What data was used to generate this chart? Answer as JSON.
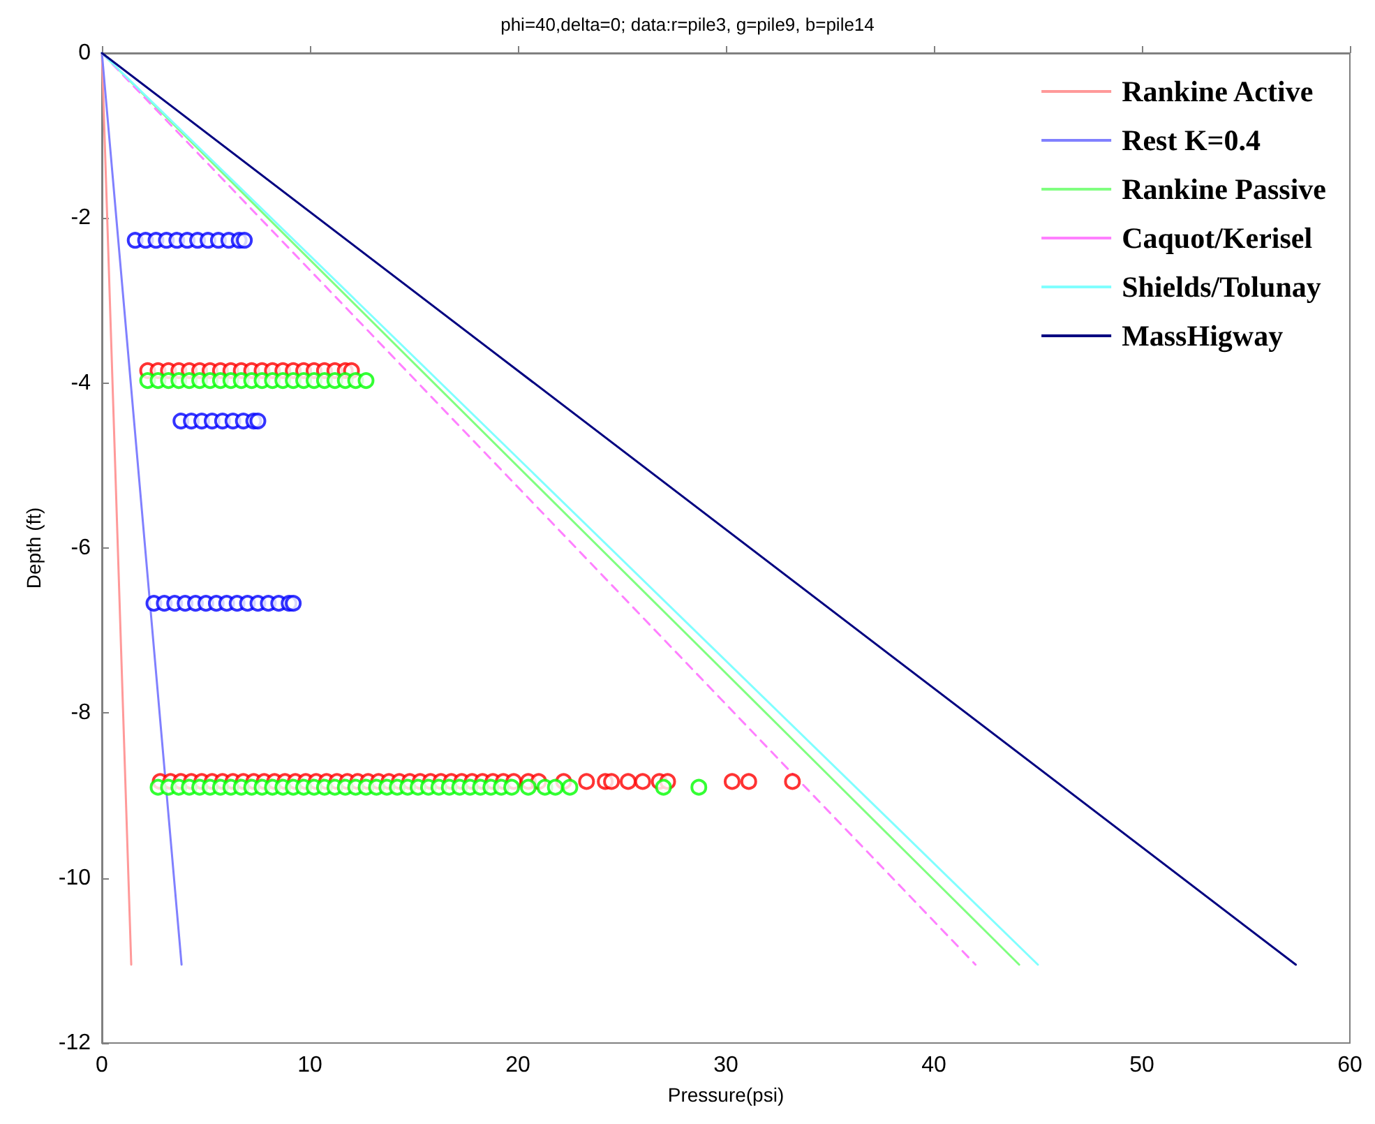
{
  "chart_data": {
    "type": "line",
    "title": "phi=40,delta=0; data:r=pile3, g=pile9, b=pile14",
    "xlabel": "Pressure(psi)",
    "ylabel": "Depth (ft)",
    "xlim": [
      0,
      60
    ],
    "xticks": [
      0,
      10,
      20,
      30,
      40,
      50,
      60
    ],
    "ylim": [
      -12,
      0
    ],
    "yticks": [
      -12,
      -10,
      -8,
      -6,
      -4,
      -2,
      0
    ],
    "grid": false,
    "legend": "top right",
    "marker": "none",
    "series": [
      {
        "name": "Rankine Active",
        "color": "#ff9999",
        "line_style": "solid",
        "x": [
          0,
          1.41
        ],
        "values": [
          0,
          -11.05
        ]
      },
      {
        "name": "Rest K=0.4",
        "color": "#8080ff",
        "line_style": "solid",
        "x": [
          0,
          3.83
        ],
        "values": [
          0,
          -11.05
        ]
      },
      {
        "name": "Rankine Passive",
        "color": "#80ff80",
        "line_style": "solid",
        "x": [
          0,
          44.1
        ],
        "values": [
          0,
          -11.05
        ]
      },
      {
        "name": "Caquot/Kerisel",
        "color": "#ff80ff",
        "line_style": "dashed",
        "x": [
          0,
          42.0
        ],
        "values": [
          0,
          -11.05
        ]
      },
      {
        "name": "Shields/Tolunay",
        "color": "#80ffff",
        "line_style": "solid",
        "x": [
          0,
          45.0
        ],
        "values": [
          0,
          -11.05
        ]
      },
      {
        "name": "MassHigway",
        "color": "#000080",
        "line_style": "solid",
        "x": [
          0,
          57.4
        ],
        "values": [
          0,
          -11.05
        ]
      },
      {
        "color": "#ff0000",
        "type": "scatter",
        "marker": "circle",
        "x": [
          2.2,
          2.7,
          3.2,
          3.7,
          4.2,
          4.7,
          5.2,
          5.7,
          6.2,
          6.7,
          7.2,
          7.7,
          8.2,
          8.7,
          9.2,
          9.7,
          10.2,
          10.7,
          11.2,
          11.7,
          12.0,
          2.8,
          3.3,
          3.8,
          4.3,
          4.8,
          5.3,
          5.8,
          6.3,
          6.8,
          7.3,
          7.8,
          8.3,
          8.8,
          9.3,
          9.8,
          10.3,
          10.8,
          11.3,
          11.8,
          12.3,
          12.8,
          13.3,
          13.8,
          14.3,
          14.8,
          15.3,
          15.8,
          16.3,
          16.8,
          17.3,
          17.8,
          18.3,
          18.8,
          19.3,
          19.8,
          20.5,
          21.0,
          22.2,
          23.3,
          24.2,
          24.5,
          25.3,
          26.0,
          26.8,
          27.2,
          30.3,
          31.1,
          33.2
        ],
        "values": [
          -3.85,
          -3.85,
          -3.85,
          -3.85,
          -3.85,
          -3.85,
          -3.85,
          -3.85,
          -3.85,
          -3.85,
          -3.85,
          -3.85,
          -3.85,
          -3.85,
          -3.85,
          -3.85,
          -3.85,
          -3.85,
          -3.85,
          -3.85,
          -3.85,
          -8.83,
          -8.83,
          -8.83,
          -8.83,
          -8.83,
          -8.83,
          -8.83,
          -8.83,
          -8.83,
          -8.83,
          -8.83,
          -8.83,
          -8.83,
          -8.83,
          -8.83,
          -8.83,
          -8.83,
          -8.83,
          -8.83,
          -8.83,
          -8.83,
          -8.83,
          -8.83,
          -8.83,
          -8.83,
          -8.83,
          -8.83,
          -8.83,
          -8.83,
          -8.83,
          -8.83,
          -8.83,
          -8.83,
          -8.83,
          -8.83,
          -8.83,
          -8.83,
          -8.83,
          -8.83,
          -8.83,
          -8.83,
          -8.83,
          -8.83,
          -8.83,
          -8.83,
          -8.83,
          -8.83,
          -8.83
        ]
      },
      {
        "color": "#00ff00",
        "type": "scatter",
        "marker": "circle",
        "x": [
          2.2,
          2.7,
          3.2,
          3.7,
          4.2,
          4.7,
          5.2,
          5.7,
          6.2,
          6.7,
          7.2,
          7.7,
          8.2,
          8.7,
          9.2,
          9.7,
          10.2,
          10.7,
          11.2,
          11.7,
          12.2,
          12.7,
          2.7,
          3.2,
          3.7,
          4.2,
          4.7,
          5.2,
          5.7,
          6.2,
          6.7,
          7.2,
          7.7,
          8.2,
          8.7,
          9.2,
          9.7,
          10.2,
          10.7,
          11.2,
          11.7,
          12.2,
          12.7,
          13.2,
          13.7,
          14.2,
          14.7,
          15.2,
          15.7,
          16.2,
          16.7,
          17.2,
          17.7,
          18.2,
          18.7,
          19.2,
          19.7,
          20.5,
          21.3,
          21.8,
          22.5,
          27.0,
          28.7
        ],
        "values": [
          -3.97,
          -3.97,
          -3.97,
          -3.97,
          -3.97,
          -3.97,
          -3.97,
          -3.97,
          -3.97,
          -3.97,
          -3.97,
          -3.97,
          -3.97,
          -3.97,
          -3.97,
          -3.97,
          -3.97,
          -3.97,
          -3.97,
          -3.97,
          -3.97,
          -3.97,
          -8.9,
          -8.9,
          -8.9,
          -8.9,
          -8.9,
          -8.9,
          -8.9,
          -8.9,
          -8.9,
          -8.9,
          -8.9,
          -8.9,
          -8.9,
          -8.9,
          -8.9,
          -8.9,
          -8.9,
          -8.9,
          -8.9,
          -8.9,
          -8.9,
          -8.9,
          -8.9,
          -8.9,
          -8.9,
          -8.9,
          -8.9,
          -8.9,
          -8.9,
          -8.9,
          -8.9,
          -8.9,
          -8.9,
          -8.9,
          -8.9,
          -8.9,
          -8.9,
          -8.9,
          -8.9,
          -8.9,
          -8.9
        ]
      },
      {
        "color": "#0000ff",
        "type": "scatter",
        "marker": "circle",
        "x": [
          1.6,
          2.1,
          2.6,
          3.1,
          3.6,
          4.1,
          4.6,
          5.1,
          5.6,
          6.1,
          6.6,
          6.85,
          3.8,
          4.3,
          4.8,
          5.3,
          5.8,
          6.3,
          6.8,
          7.3,
          7.5,
          2.5,
          3.0,
          3.5,
          4.0,
          4.5,
          5.0,
          5.5,
          6.0,
          6.5,
          7.0,
          7.5,
          8.0,
          8.5,
          9.0,
          9.2
        ],
        "values": [
          -2.27,
          -2.27,
          -2.27,
          -2.27,
          -2.27,
          -2.27,
          -2.27,
          -2.27,
          -2.27,
          -2.27,
          -2.27,
          -2.27,
          -4.46,
          -4.46,
          -4.46,
          -4.46,
          -4.46,
          -4.46,
          -4.46,
          -4.46,
          -4.46,
          -6.67,
          -6.67,
          -6.67,
          -6.67,
          -6.67,
          -6.67,
          -6.67,
          -6.67,
          -6.67,
          -6.67,
          -6.67,
          -6.67,
          -6.67,
          -6.67,
          -6.67
        ]
      }
    ]
  }
}
